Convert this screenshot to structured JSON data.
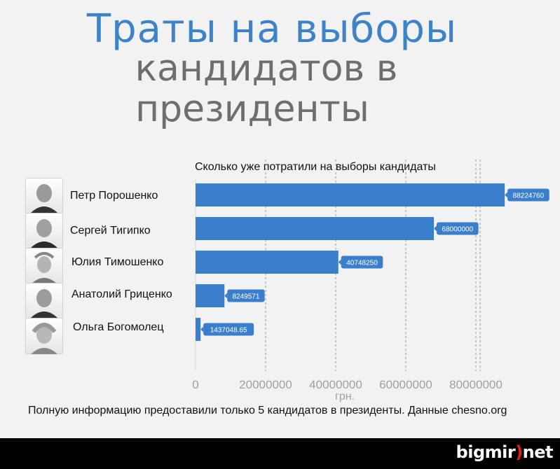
{
  "header": {
    "title_line1": "Траты на выборы",
    "title_line2": "кандидатов в",
    "title_line3": "президенты"
  },
  "candidates": [
    {
      "name": "Петр Порошенко"
    },
    {
      "name": "Сергей Тигипко"
    },
    {
      "name": "Юлия Тимошенко"
    },
    {
      "name": "Анатолий Гриценко"
    },
    {
      "name": "Ольга Богомолец"
    }
  ],
  "chart_data": {
    "type": "bar",
    "orientation": "horizontal",
    "title": "Сколько уже потратили на выборы кандидаты",
    "categories": [
      "Петр Порошенко",
      "Сергей Тигипко",
      "Юлия Тимошенко",
      "Анатолий Гриценко",
      "Ольга Богомолец"
    ],
    "values": [
      88224760,
      68000000,
      40748250,
      8249571,
      1437048.65
    ],
    "data_labels": [
      "88224760",
      "68000000",
      "40748250",
      "8249571",
      "1437048.65"
    ],
    "x_ticks": [
      0,
      20000000,
      40000000,
      60000000,
      80000000
    ],
    "x_tick_labels": [
      "0",
      "20000000",
      "40000000",
      "60000000",
      "80000000"
    ],
    "xlabel": "грн.",
    "xlim": [
      0,
      90000000
    ],
    "grid": true,
    "bar_color": "#3a7fcb"
  },
  "footer": {
    "note": "Полную информацию предоставили только 5 кандидатов в президенты. Данные chesno.org",
    "brand_left": "bigmir",
    "brand_paren": ")",
    "brand_right": "net"
  }
}
